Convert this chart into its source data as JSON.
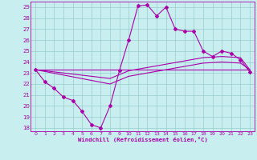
{
  "title": "",
  "xlabel": "Windchill (Refroidissement éolien,°C)",
  "bg_color": "#c8eef0",
  "line_color": "#aa00aa",
  "grid_color": "#99cccc",
  "spine_color": "#aa00aa",
  "xlim": [
    -0.5,
    23.5
  ],
  "ylim": [
    17.7,
    29.5
  ],
  "yticks": [
    18,
    19,
    20,
    21,
    22,
    23,
    24,
    25,
    26,
    27,
    28,
    29
  ],
  "xticks": [
    0,
    1,
    2,
    3,
    4,
    5,
    6,
    7,
    8,
    9,
    10,
    11,
    12,
    13,
    14,
    15,
    16,
    17,
    18,
    19,
    20,
    21,
    22,
    23
  ],
  "line1_x": [
    0,
    1,
    2,
    3,
    4,
    5,
    6,
    7,
    8,
    9,
    10,
    11,
    12,
    13,
    14,
    15,
    16,
    17,
    18,
    19,
    20,
    21,
    22,
    23
  ],
  "line1_y": [
    23.3,
    22.2,
    21.6,
    20.8,
    20.5,
    19.5,
    18.3,
    18.0,
    20.0,
    23.2,
    26.0,
    29.1,
    29.2,
    28.2,
    29.0,
    27.0,
    26.8,
    26.8,
    25.0,
    24.5,
    25.0,
    24.8,
    24.2,
    23.1
  ],
  "line2_x": [
    0,
    23
  ],
  "line2_y": [
    23.3,
    23.3
  ],
  "line3_x": [
    0,
    8,
    10,
    12,
    14,
    16,
    18,
    20,
    22,
    23
  ],
  "line3_y": [
    23.3,
    22.5,
    23.2,
    23.5,
    23.8,
    24.1,
    24.4,
    24.5,
    24.4,
    23.3
  ],
  "line4_x": [
    0,
    8,
    10,
    12,
    14,
    16,
    18,
    20,
    22,
    23
  ],
  "line4_y": [
    23.3,
    22.0,
    22.7,
    23.0,
    23.3,
    23.6,
    23.9,
    24.0,
    23.9,
    23.3
  ]
}
